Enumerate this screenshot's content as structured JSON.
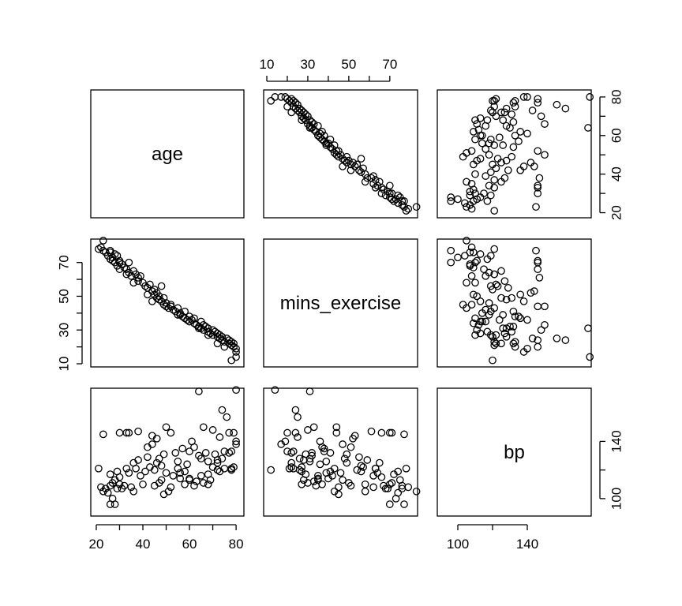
{
  "chart_data": {
    "type": "scatter",
    "layout": "pairs",
    "title": "",
    "variables": [
      "age",
      "mins_exercise",
      "bp"
    ],
    "ranges": {
      "age": [
        19,
        82
      ],
      "mins_exercise": [
        10,
        82
      ],
      "bp": [
        90,
        175
      ]
    },
    "axis_ticks": {
      "age": [
        20,
        40,
        60,
        80
      ],
      "mins_exercise": [
        10,
        30,
        50,
        70
      ],
      "bp": [
        100,
        140
      ]
    },
    "y_tick_labels": {
      "age": [
        "20",
        "40",
        "60",
        "80"
      ],
      "mins_exercise": [
        "10",
        "30",
        "50",
        "70"
      ],
      "bp": [
        "100",
        "140"
      ]
    },
    "top_tick_labels": [
      "10",
      "30",
      "50",
      "70"
    ],
    "bottom_tick_labels": [
      "20",
      "40",
      "60",
      "80"
    ],
    "bottom_tick_labels_2": [
      "100",
      "140"
    ],
    "grid": false,
    "points": {
      "age": [
        21,
        22,
        23,
        24,
        25,
        26,
        26,
        27,
        27,
        28,
        28,
        29,
        29,
        30,
        30,
        31,
        32,
        33,
        34,
        34,
        35,
        36,
        37,
        38,
        38,
        39,
        40,
        41,
        42,
        43,
        44,
        45,
        45,
        46,
        46,
        47,
        47,
        48,
        49,
        49,
        50,
        50,
        51,
        52,
        53,
        54,
        55,
        55,
        56,
        57,
        58,
        58,
        59,
        60,
        60,
        61,
        62,
        62,
        63,
        64,
        65,
        65,
        66,
        66,
        67,
        68,
        68,
        69,
        70,
        70,
        71,
        72,
        72,
        73,
        73,
        74,
        74,
        75,
        76,
        77,
        77,
        78,
        78,
        79,
        79,
        80,
        80,
        80,
        23,
        26,
        30,
        33,
        36,
        42,
        44,
        48,
        52,
        56,
        60,
        64,
        68,
        72,
        75,
        78
      ],
      "mins_exercise": [
        78,
        79,
        77,
        76,
        74,
        76,
        72,
        73,
        71,
        75,
        70,
        74,
        68,
        71,
        66,
        69,
        67,
        66,
        70,
        64,
        62,
        65,
        63,
        61,
        59,
        62,
        58,
        56,
        55,
        57,
        53,
        54,
        51,
        52,
        49,
        50,
        48,
        47,
        49,
        45,
        46,
        44,
        43,
        45,
        42,
        41,
        43,
        39,
        40,
        38,
        41,
        37,
        36,
        38,
        35,
        36,
        34,
        37,
        33,
        32,
        35,
        31,
        33,
        30,
        32,
        29,
        31,
        28,
        30,
        27,
        29,
        26,
        28,
        25,
        27,
        24,
        26,
        23,
        25,
        24,
        22,
        23,
        21,
        22,
        20,
        19,
        17,
        14,
        83,
        77,
        70,
        63,
        58,
        51,
        47,
        56,
        44,
        39,
        35,
        31,
        27,
        22,
        20,
        12
      ],
      "bp": [
        121,
        108,
        145,
        107,
        104,
        109,
        117,
        100,
        111,
        113,
        96,
        119,
        107,
        146,
        115,
        107,
        109,
        146,
        146,
        118,
        108,
        125,
        121,
        147,
        127,
        116,
        110,
        119,
        129,
        122,
        144,
        120,
        109,
        142,
        125,
        111,
        128,
        113,
        131,
        103,
        118,
        150,
        105,
        108,
        116,
        132,
        121,
        126,
        114,
        135,
        119,
        110,
        124,
        133,
        113,
        140,
        109,
        136,
        112,
        130,
        116,
        128,
        150,
        111,
        132,
        117,
        126,
        113,
        148,
        122,
        131,
        120,
        127,
        143,
        119,
        162,
        128,
        121,
        157,
        146,
        132,
        133,
        121,
        122,
        146,
        140,
        138,
        176,
        105,
        96,
        110,
        121,
        105,
        136,
        138,
        123,
        146,
        118,
        114,
        175,
        110,
        125,
        133,
        120
      ]
    }
  }
}
